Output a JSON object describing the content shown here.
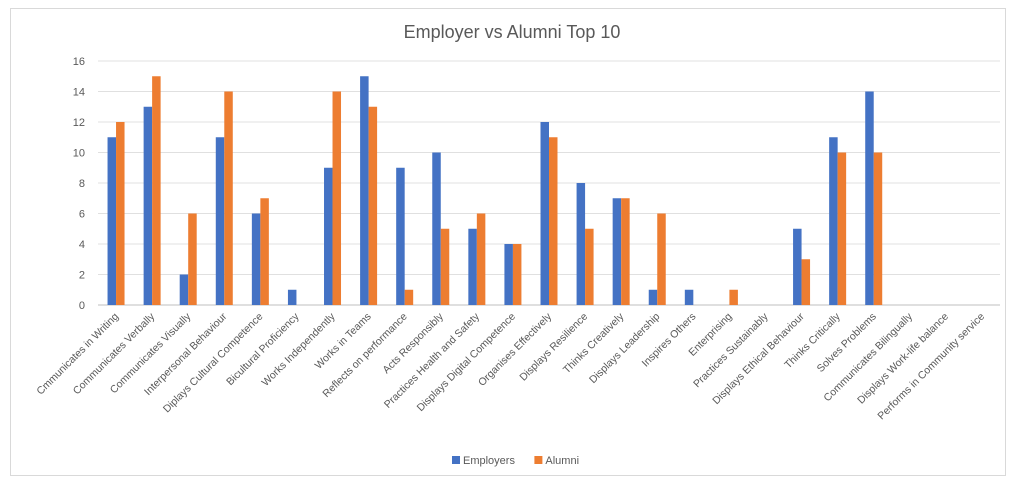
{
  "chart_data": {
    "type": "bar",
    "title": "Employer vs Alumni Top 10",
    "xlabel": "",
    "ylabel": "",
    "ylim": [
      0,
      16
    ],
    "yticks": [
      0,
      2,
      4,
      6,
      8,
      10,
      12,
      14,
      16
    ],
    "grid": true,
    "legend_position": "bottom",
    "categories": [
      "Cmmunicates in Writing",
      "Communicates Verbally",
      "Communicates Visually",
      "Interpersonal Behaviour",
      "Diplays Cultural Competence",
      "Bicultural Proficiency",
      "Works Independently",
      "Works in Teams",
      "Reflects on performance",
      "Acts Responsibly",
      "Practices Health and Safety",
      "Displays Digital Competence",
      "Organises Effectively",
      "Displays Resilience",
      "Thinks Creatively",
      "Displays Leadership",
      "Inspires Others",
      "Enterprising",
      "Practices Sustainably",
      "Displays Ethical Behaviour",
      "Thinks Critically",
      "Solves Problems",
      "Communicates Bilingually",
      "Displays Work-life balance",
      "Performs in Community service"
    ],
    "series": [
      {
        "name": "Employers",
        "color": "#4472c4",
        "values": [
          11,
          13,
          2,
          11,
          6,
          1,
          9,
          15,
          9,
          10,
          5,
          4,
          12,
          8,
          7,
          1,
          1,
          0,
          0,
          5,
          11,
          14,
          0,
          0,
          0
        ]
      },
      {
        "name": "Alumni",
        "color": "#ed7d31",
        "values": [
          12,
          15,
          6,
          14,
          7,
          0,
          14,
          13,
          1,
          5,
          6,
          4,
          11,
          5,
          7,
          6,
          0,
          1,
          0,
          3,
          10,
          10,
          0,
          0,
          0
        ]
      }
    ]
  }
}
